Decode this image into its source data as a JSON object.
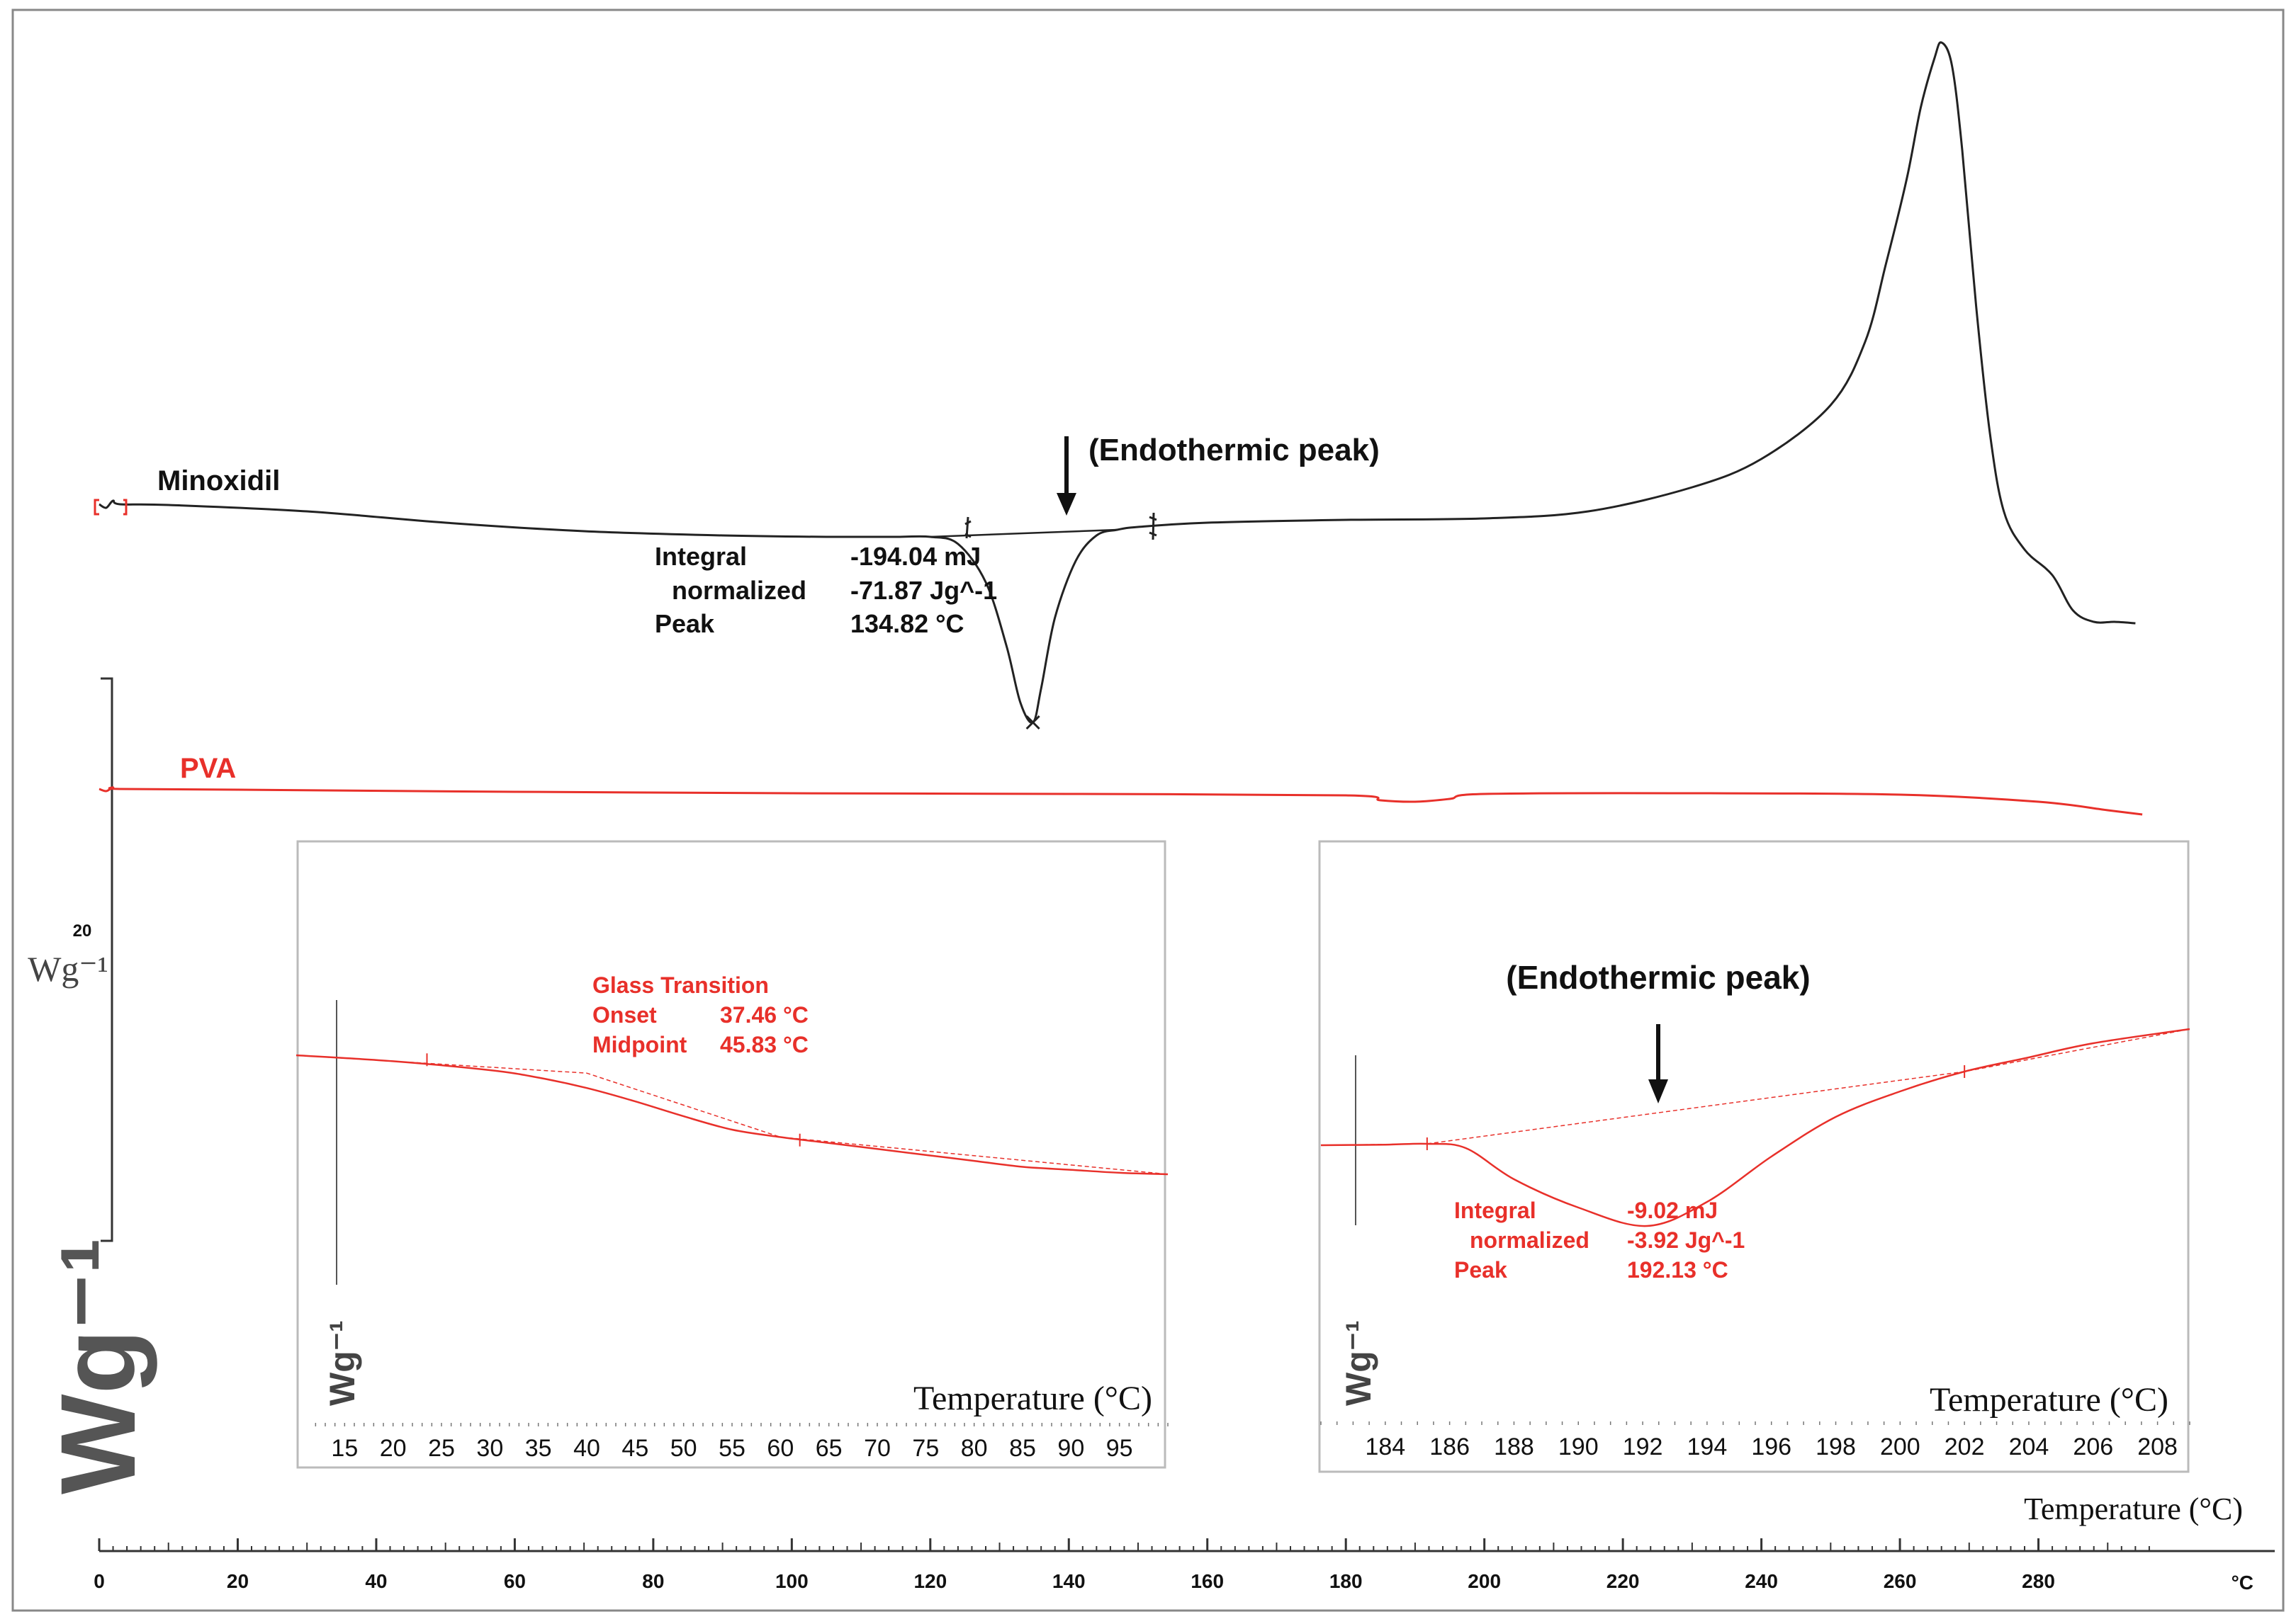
{
  "chart_data": [
    {
      "type": "line",
      "title": "",
      "xlabel": "Temperature (°C)",
      "x_unit": "°C",
      "xlim": [
        0,
        300
      ],
      "x_ticks": [
        0,
        20,
        40,
        60,
        80,
        100,
        120,
        140,
        160,
        180,
        200,
        220,
        240,
        260,
        280
      ],
      "ylabel": "Wg⁻¹",
      "y_scale_bar_value": "20",
      "y_scale_bar_unit": "Wg⁻¹",
      "grid": false,
      "series": [
        {
          "name": "Minoxidil",
          "color": "#222222",
          "x": [
            0,
            1,
            2,
            3,
            10,
            30,
            50,
            70,
            90,
            105,
            115,
            120,
            124,
            128,
            131,
            133,
            134.82,
            136,
            138,
            141,
            144,
            147,
            150,
            160,
            180,
            200,
            215,
            230,
            240,
            250,
            255,
            258,
            261,
            263,
            265,
            266,
            267.5,
            269,
            271,
            273,
            275,
            278,
            282,
            285,
            288,
            291,
            294
          ],
          "y": [
            0,
            -0.25,
            0.25,
            0,
            -0.05,
            -0.5,
            -1.3,
            -1.9,
            -2.2,
            -2.3,
            -2.3,
            -2.3,
            -2.8,
            -5.5,
            -10.0,
            -14.0,
            -15.4,
            -13.0,
            -8.0,
            -4.0,
            -2.2,
            -1.8,
            -1.6,
            -1.3,
            -1.1,
            -1.0,
            -0.5,
            1.2,
            3.2,
            7.0,
            11.5,
            17.0,
            23.0,
            28.0,
            31.5,
            32.6,
            31.0,
            25.0,
            14.0,
            5.0,
            -0.5,
            -3.2,
            -5.0,
            -7.5,
            -8.3,
            -8.3,
            -8.4
          ]
        },
        {
          "name": "PVA",
          "color": "#e8302a",
          "x": [
            0,
            1,
            2,
            3,
            20,
            60,
            100,
            140,
            180,
            185,
            190,
            195,
            200,
            230,
            260,
            280,
            290,
            295
          ],
          "y": [
            0,
            -0.15,
            0.1,
            0,
            -0.05,
            -0.2,
            -0.3,
            -0.35,
            -0.45,
            -0.8,
            -0.9,
            -0.7,
            -0.35,
            -0.3,
            -0.4,
            -0.9,
            -1.5,
            -1.8
          ]
        }
      ],
      "annotations": {
        "endothermic_label": "(Endothermic peak)",
        "integral_label": "Integral",
        "integral_value": "-194.04 mJ",
        "normalized_label": "normalized",
        "normalized_value": "-71.87 Jg^-1",
        "peak_label": "Peak",
        "peak_value": "134.82 °C",
        "peak_x": 134.82
      }
    },
    {
      "type": "line",
      "title": "",
      "xlabel": "Temperature (°C)",
      "ylabel": "Wg⁻¹",
      "xlim": [
        10,
        100
      ],
      "x_ticks": [
        15,
        20,
        25,
        30,
        35,
        40,
        45,
        50,
        55,
        60,
        65,
        70,
        75,
        80,
        85,
        90,
        95
      ],
      "series": [
        {
          "name": "PVA",
          "color": "#e8302a",
          "x": [
            10,
            20,
            30,
            35,
            40,
            45,
            50,
            55,
            60,
            65,
            70,
            75,
            80,
            85,
            90,
            95,
            100
          ],
          "y": [
            0,
            -0.2,
            -0.5,
            -0.75,
            -1.1,
            -1.55,
            -2.05,
            -2.5,
            -2.75,
            -2.95,
            -3.15,
            -3.35,
            -3.55,
            -3.75,
            -3.85,
            -3.95,
            -4.0
          ]
        }
      ],
      "annotations": {
        "title": "Glass Transition",
        "onset_label": "Onset",
        "onset_value": "37.46 °C",
        "midpoint_label": "Midpoint",
        "midpoint_value": "45.83 °C",
        "onset_x": 37.46,
        "midpoint_x": 45.83
      }
    },
    {
      "type": "line",
      "title": "",
      "xlabel": "Temperature (°C)",
      "ylabel": "Wg⁻¹",
      "xlim": [
        182,
        209
      ],
      "x_ticks": [
        184,
        186,
        188,
        190,
        192,
        194,
        196,
        198,
        200,
        202,
        204,
        206,
        208
      ],
      "series": [
        {
          "name": "PVA",
          "color": "#e8302a",
          "x": [
            182,
            184,
            185.3,
            186.5,
            188,
            190,
            192.13,
            194,
            196,
            198,
            200,
            202,
            204,
            206,
            209
          ],
          "y": [
            0,
            0.02,
            0.05,
            -0.1,
            -1.2,
            -2.2,
            -2.85,
            -2.0,
            -0.4,
            1.0,
            1.9,
            2.6,
            3.1,
            3.6,
            4.1
          ]
        }
      ],
      "annotations": {
        "endothermic_label": "(Endothermic peak)",
        "integral_label": "Integral",
        "integral_value": "-9.02 mJ",
        "normalized_label": "normalized",
        "normalized_value": "-3.92 Jg^-1",
        "peak_label": "Peak",
        "peak_value": "192.13 °C",
        "peak_x": 192.13
      }
    }
  ]
}
